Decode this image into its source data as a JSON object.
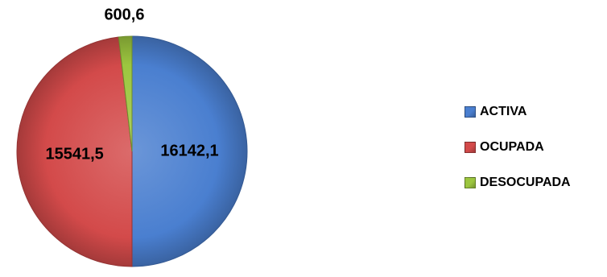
{
  "chart_data": {
    "type": "pie",
    "title": "",
    "categories": [
      "ACTIVA",
      "OCUPADA",
      "DESOCUPADA"
    ],
    "values": [
      16142.1,
      15541.5,
      600.6
    ],
    "value_labels": [
      "16142,1",
      "15541,5",
      "600,6"
    ],
    "colors": [
      "#4a7fd0",
      "#d34a4a",
      "#9cc63f"
    ],
    "start_angle_deg": 0,
    "direction": "clockwise",
    "legend_position": "right",
    "legend": [
      {
        "label": "ACTIVA",
        "color": "#4a7fd0"
      },
      {
        "label": "OCUPADA",
        "color": "#d34a4a"
      },
      {
        "label": "DESOCUPADA",
        "color": "#9cc63f"
      }
    ]
  }
}
